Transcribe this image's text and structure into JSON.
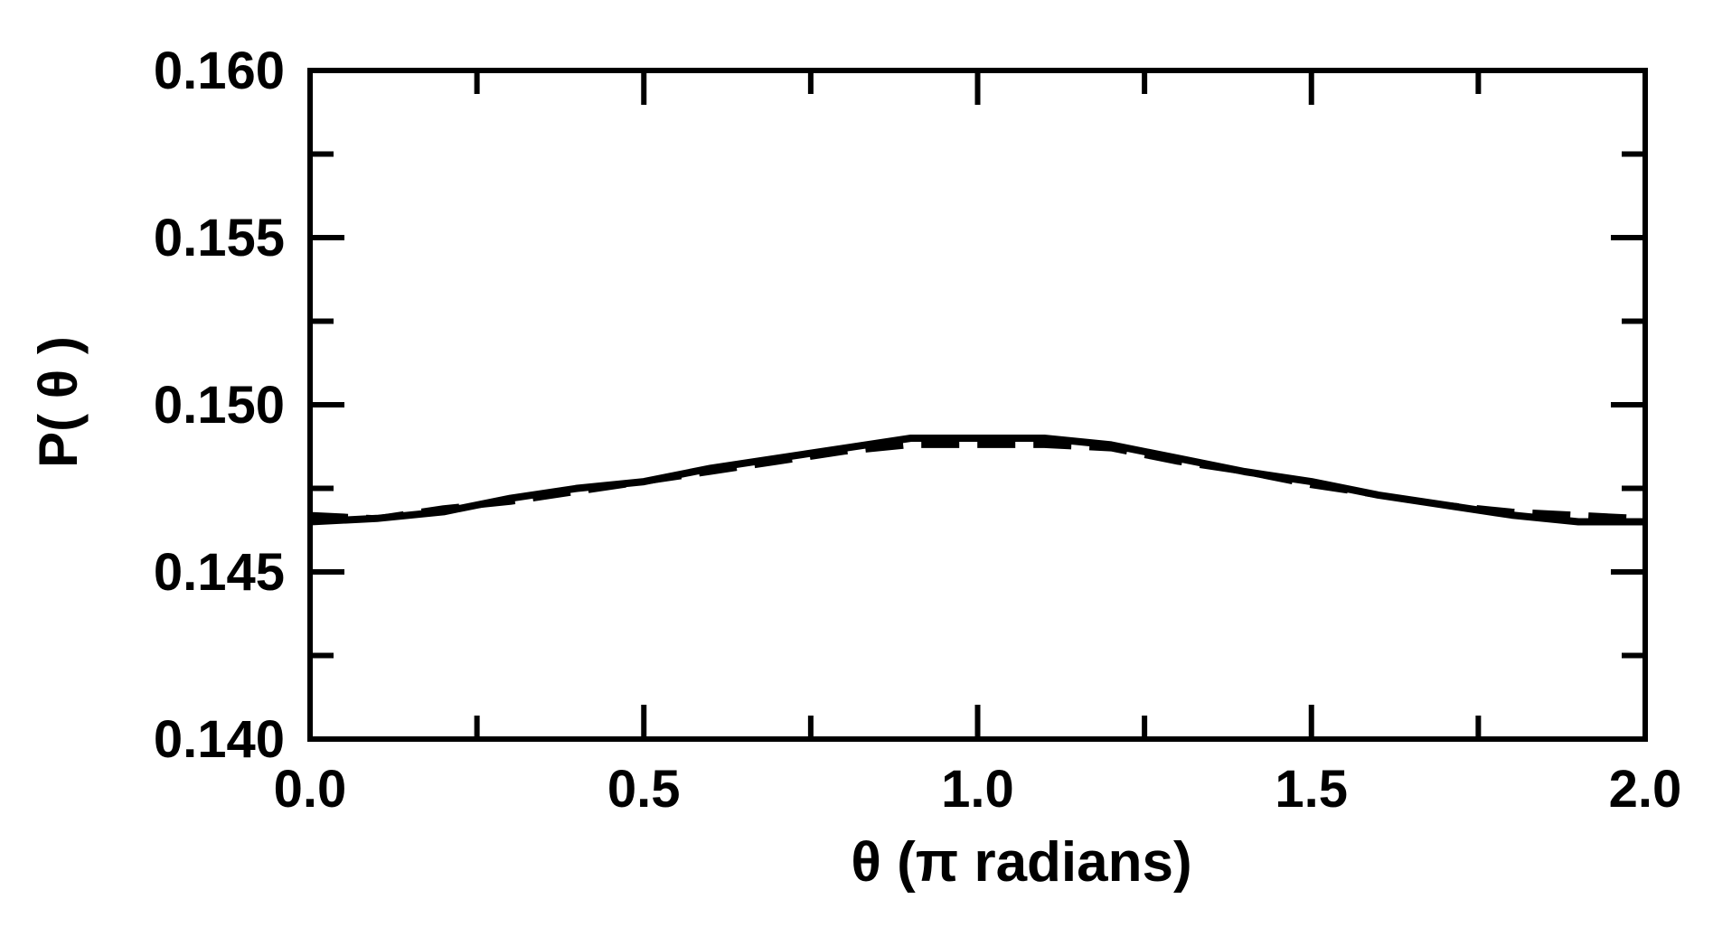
{
  "chart_data": {
    "type": "line",
    "title": "",
    "xlabel": "θ (π radians)",
    "ylabel": "P( θ )",
    "xlim": [
      0.0,
      2.0
    ],
    "ylim": [
      0.14,
      0.16
    ],
    "xticks": [
      "0.0",
      "0.5",
      "1.0",
      "1.5",
      "2.0"
    ],
    "yticks": [
      "0.140",
      "0.145",
      "0.150",
      "0.155",
      "0.160"
    ],
    "grid": false,
    "legend": "none",
    "series": [
      {
        "style": "solid",
        "x": [
          0.0,
          0.1,
          0.2,
          0.3,
          0.4,
          0.5,
          0.6,
          0.7,
          0.8,
          0.9,
          1.0,
          1.1,
          1.2,
          1.3,
          1.4,
          1.5,
          1.6,
          1.7,
          1.8,
          1.9,
          2.0
        ],
        "y": [
          0.1465,
          0.1466,
          0.1468,
          0.1472,
          0.1475,
          0.1477,
          0.1481,
          0.1484,
          0.1487,
          0.149,
          0.149,
          0.149,
          0.1488,
          0.1484,
          0.148,
          0.1477,
          0.1473,
          0.147,
          0.1467,
          0.1465,
          0.1465
        ]
      },
      {
        "style": "dashed",
        "x": [
          0.0,
          0.1,
          0.2,
          0.3,
          0.4,
          0.5,
          0.6,
          0.7,
          0.8,
          0.9,
          1.0,
          1.1,
          1.2,
          1.3,
          1.4,
          1.5,
          1.6,
          1.7,
          1.8,
          1.9,
          2.0
        ],
        "y": [
          0.1467,
          0.1466,
          0.1469,
          0.1471,
          0.1474,
          0.1477,
          0.148,
          0.1483,
          0.1486,
          0.1488,
          0.1488,
          0.1488,
          0.1487,
          0.1483,
          0.148,
          0.1476,
          0.1473,
          0.147,
          0.1468,
          0.1467,
          0.1466
        ]
      }
    ]
  }
}
